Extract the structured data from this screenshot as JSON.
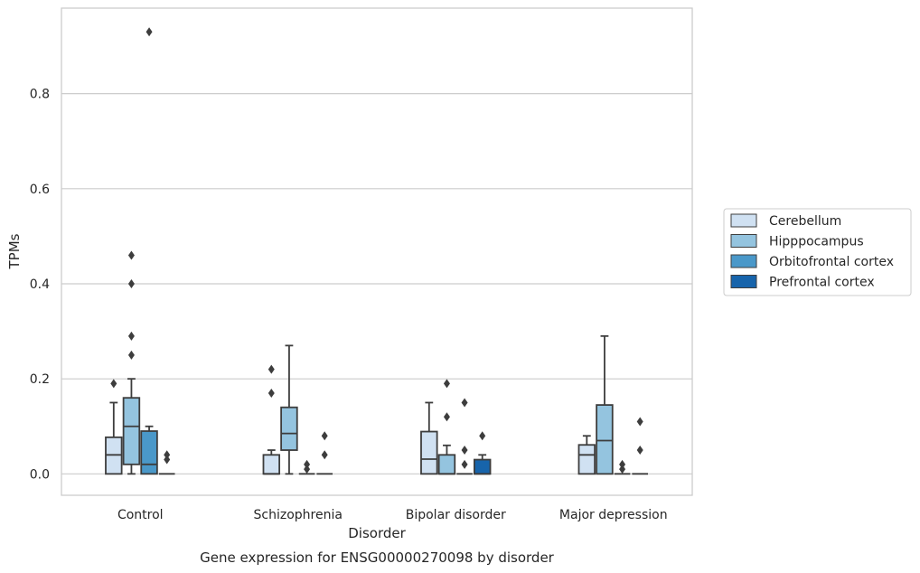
{
  "chart_data": {
    "type": "box",
    "title": "",
    "caption": "Gene expression for ENSG00000270098 by disorder",
    "xlabel": "Disorder",
    "ylabel": "TPMs",
    "ylim": [
      -0.045,
      0.98
    ],
    "yticks": [
      0.0,
      0.2,
      0.4,
      0.6,
      0.8
    ],
    "ytick_labels": [
      "0.0",
      "0.2",
      "0.4",
      "0.6",
      "0.8"
    ],
    "grid": "horizontal",
    "legend_position": "right",
    "categories": [
      "Control",
      "Schizophrenia",
      "Bipolar disorder",
      "Major depression"
    ],
    "series": [
      {
        "name": "Cerebellum",
        "color": "#d0e1f2",
        "boxes": [
          {
            "whisker_low": 0.0,
            "q1": 0.0,
            "median": 0.04,
            "q3": 0.077,
            "whisker_high": 0.15,
            "outliers": [
              0.19
            ]
          },
          {
            "whisker_low": 0.0,
            "q1": 0.0,
            "median": 0.0,
            "q3": 0.04,
            "whisker_high": 0.05,
            "outliers": [
              0.17,
              0.22
            ]
          },
          {
            "whisker_low": 0.0,
            "q1": 0.0,
            "median": 0.031,
            "q3": 0.089,
            "whisker_high": 0.15,
            "outliers": []
          },
          {
            "whisker_low": 0.0,
            "q1": 0.0,
            "median": 0.04,
            "q3": 0.061,
            "whisker_high": 0.08,
            "outliers": []
          }
        ]
      },
      {
        "name": "Hipppocampus",
        "color": "#94c4df",
        "boxes": [
          {
            "whisker_low": 0.0,
            "q1": 0.02,
            "median": 0.1,
            "q3": 0.16,
            "whisker_high": 0.2,
            "outliers": [
              0.25,
              0.29,
              0.4,
              0.46
            ]
          },
          {
            "whisker_low": 0.0,
            "q1": 0.05,
            "median": 0.085,
            "q3": 0.14,
            "whisker_high": 0.27,
            "outliers": []
          },
          {
            "whisker_low": 0.0,
            "q1": 0.0,
            "median": 0.0,
            "q3": 0.04,
            "whisker_high": 0.06,
            "outliers": [
              0.12,
              0.19
            ]
          },
          {
            "whisker_low": 0.0,
            "q1": 0.0,
            "median": 0.07,
            "q3": 0.145,
            "whisker_high": 0.29,
            "outliers": []
          }
        ]
      },
      {
        "name": "Orbitofrontal cortex",
        "color": "#4a98c9",
        "boxes": [
          {
            "whisker_low": 0.0,
            "q1": 0.0,
            "median": 0.02,
            "q3": 0.09,
            "whisker_high": 0.1,
            "outliers": [
              0.93
            ]
          },
          {
            "whisker_low": 0.0,
            "q1": 0.0,
            "median": 0.0,
            "q3": 0.0,
            "whisker_high": 0.0,
            "outliers": [
              0.01,
              0.02
            ]
          },
          {
            "whisker_low": 0.0,
            "q1": 0.0,
            "median": 0.0,
            "q3": 0.0,
            "whisker_high": 0.0,
            "outliers": [
              0.02,
              0.05,
              0.15
            ]
          },
          {
            "whisker_low": 0.0,
            "q1": 0.0,
            "median": 0.0,
            "q3": 0.0,
            "whisker_high": 0.0,
            "outliers": [
              0.01,
              0.02
            ]
          }
        ]
      },
      {
        "name": "Prefrontal cortex",
        "color": "#1764ab",
        "boxes": [
          {
            "whisker_low": 0.0,
            "q1": 0.0,
            "median": 0.0,
            "q3": 0.0,
            "whisker_high": 0.0,
            "outliers": [
              0.03,
              0.04
            ]
          },
          {
            "whisker_low": 0.0,
            "q1": 0.0,
            "median": 0.0,
            "q3": 0.0,
            "whisker_high": 0.0,
            "outliers": [
              0.04,
              0.08
            ]
          },
          {
            "whisker_low": 0.0,
            "q1": 0.0,
            "median": 0.0,
            "q3": 0.03,
            "whisker_high": 0.04,
            "outliers": [
              0.08
            ]
          },
          {
            "whisker_low": 0.0,
            "q1": 0.0,
            "median": 0.0,
            "q3": 0.0,
            "whisker_high": 0.0,
            "outliers": [
              0.05,
              0.11
            ]
          }
        ]
      }
    ]
  }
}
